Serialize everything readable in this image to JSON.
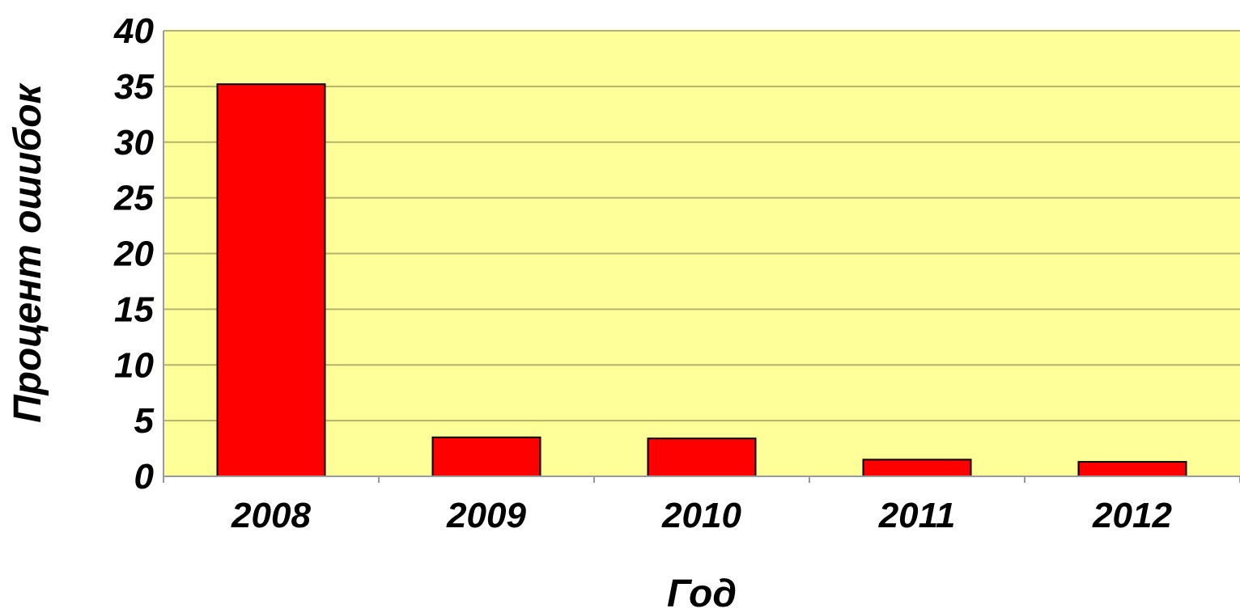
{
  "chart_data": {
    "type": "bar",
    "title": "",
    "xlabel": "Год",
    "ylabel": "Процент ошибок",
    "categories": [
      "2008",
      "2009",
      "2010",
      "2011",
      "2012"
    ],
    "values": [
      35.2,
      3.5,
      3.4,
      1.5,
      1.3
    ],
    "ylim": [
      0,
      40
    ],
    "yticks": [
      0,
      5,
      10,
      15,
      20,
      25,
      30,
      35,
      40
    ],
    "ytick_labels": [
      "0",
      "5",
      "10",
      "15",
      "20",
      "25",
      "30",
      "35",
      "40"
    ],
    "grid": true,
    "legend": "none",
    "colors": {
      "bar": "#ff0000",
      "plot_background": "#ffff99",
      "gridline": "#b3b36b",
      "bar_border": "#000000"
    }
  }
}
